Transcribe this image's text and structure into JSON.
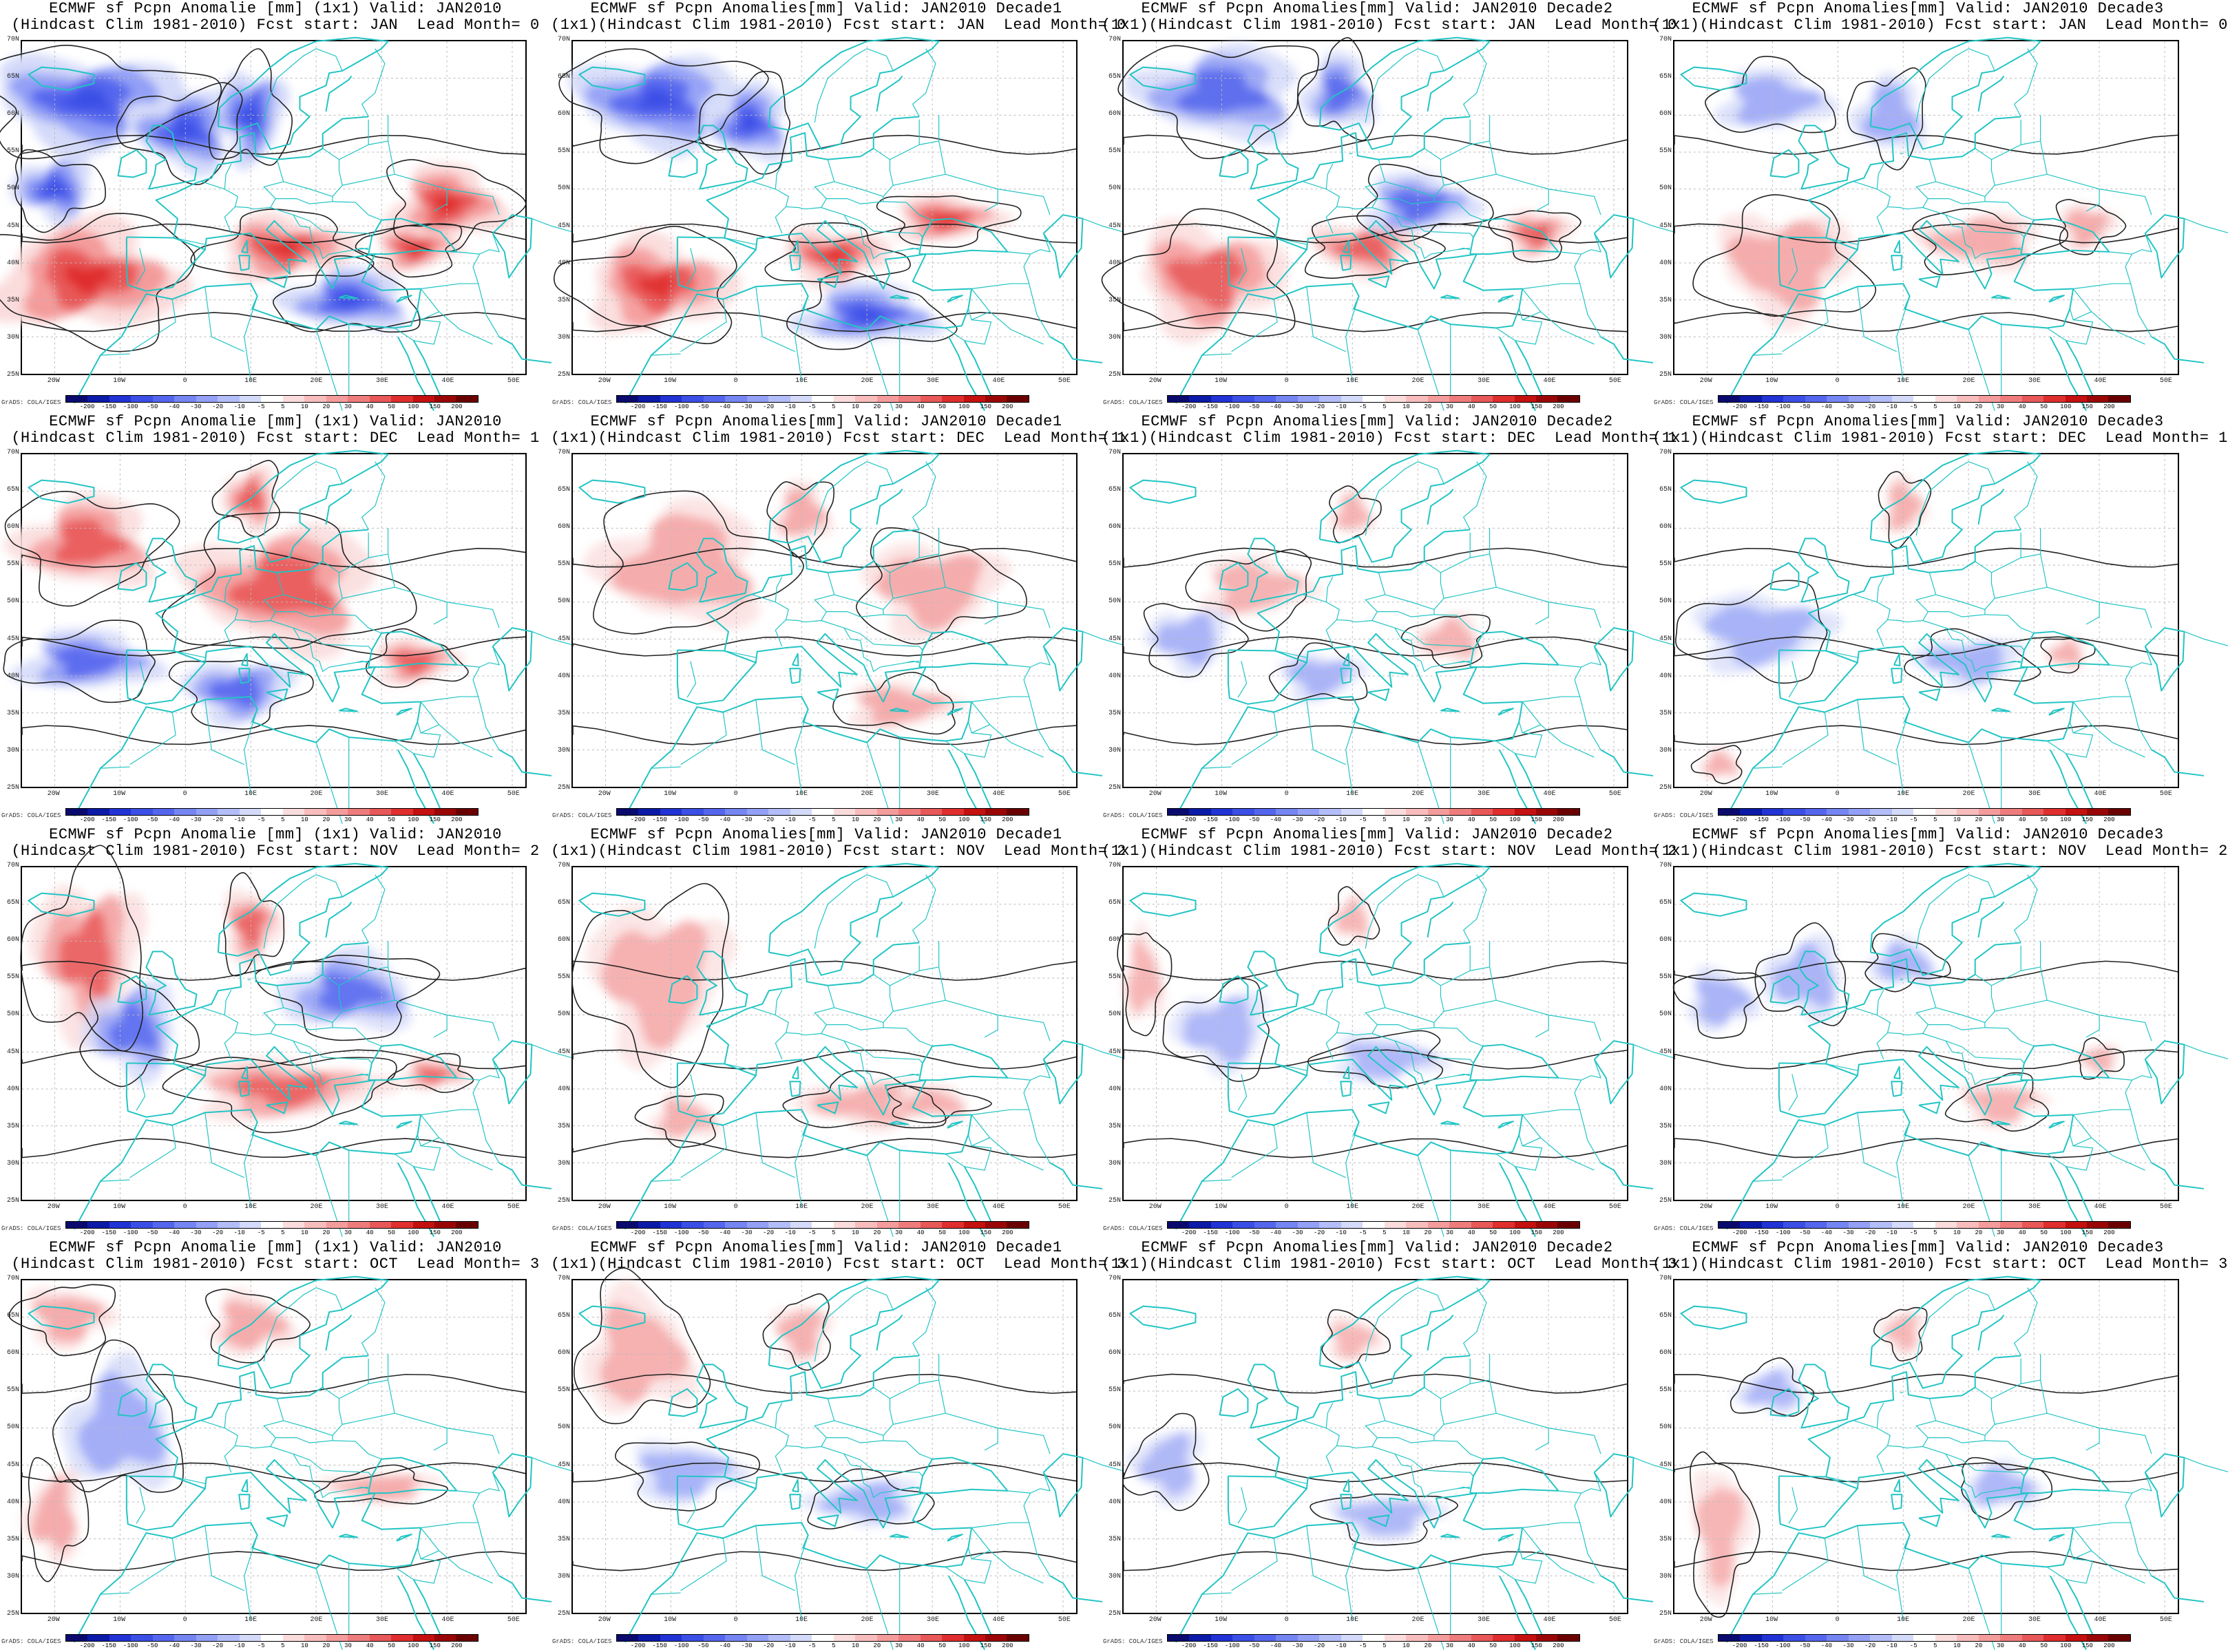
{
  "panels": [
    {
      "title1": "ECMWF sf Pcpn Anomalie [mm] (1x1) Valid: JAN2010",
      "title2": "(Hindcast Clim 1981-2010) Fcst start: JAN  Lead Month= 0",
      "intensity": 1.0
    },
    {
      "title1": "ECMWF sf Pcpn Anomalies[mm] Valid: JAN2010 Decade1",
      "title2": "(1x1)(Hindcast Clim 1981-2010) Fcst start: JAN  Lead Month= 0",
      "intensity": 0.85
    },
    {
      "title1": "ECMWF sf Pcpn Anomalies[mm] Valid: JAN2010 Decade2",
      "title2": "(1x1)(Hindcast Clim 1981-2010) Fcst start: JAN  Lead Month= 0",
      "intensity": 0.7
    },
    {
      "title1": "ECMWF sf Pcpn Anomalies[mm] Valid: JAN2010 Decade3",
      "title2": "(1x1)(Hindcast Clim 1981-2010) Fcst start: JAN  Lead Month= 0",
      "intensity": 0.5
    },
    {
      "title1": "ECMWF sf Pcpn Anomalie [mm] (1x1) Valid: JAN2010",
      "title2": "(Hindcast Clim 1981-2010) Fcst start: DEC  Lead Month= 1",
      "intensity": 0.75
    },
    {
      "title1": "ECMWF sf Pcpn Anomalies[mm] Valid: JAN2010 Decade1",
      "title2": "(1x1)(Hindcast Clim 1981-2010) Fcst start: DEC  Lead Month= 1",
      "intensity": 0.5
    },
    {
      "title1": "ECMWF sf Pcpn Anomalies[mm] Valid: JAN2010 Decade2",
      "title2": "(1x1)(Hindcast Clim 1981-2010) Fcst start: DEC  Lead Month= 1",
      "intensity": 0.3
    },
    {
      "title1": "ECMWF sf Pcpn Anomalies[mm] Valid: JAN2010 Decade3",
      "title2": "(1x1)(Hindcast Clim 1981-2010) Fcst start: DEC  Lead Month= 1",
      "intensity": 0.35
    },
    {
      "title1": "ECMWF sf Pcpn Anomalie [mm] (1x1) Valid: JAN2010",
      "title2": "(Hindcast Clim 1981-2010) Fcst start: NOV  Lead Month= 2",
      "intensity": 0.55
    },
    {
      "title1": "ECMWF sf Pcpn Anomalies[mm] Valid: JAN2010 Decade1",
      "title2": "(1x1)(Hindcast Clim 1981-2010) Fcst start: NOV  Lead Month= 2",
      "intensity": 0.35
    },
    {
      "title1": "ECMWF sf Pcpn Anomalies[mm] Valid: JAN2010 Decade2",
      "title2": "(1x1)(Hindcast Clim 1981-2010) Fcst start: NOV  Lead Month= 2",
      "intensity": 0.25
    },
    {
      "title1": "ECMWF sf Pcpn Anomalies[mm] Valid: JAN2010 Decade3",
      "title2": "(1x1)(Hindcast Clim 1981-2010) Fcst start: NOV  Lead Month= 2",
      "intensity": 0.3
    },
    {
      "title1": "ECMWF sf Pcpn Anomalie [mm] (1x1) Valid: JAN2010",
      "title2": "(Hindcast Clim 1981-2010) Fcst start: OCT  Lead Month= 3",
      "intensity": 0.5
    },
    {
      "title1": "ECMWF sf Pcpn Anomalies[mm] Valid: JAN2010 Decade1",
      "title2": "(1x1)(Hindcast Clim 1981-2010) Fcst start: OCT  Lead Month= 3",
      "intensity": 0.35
    },
    {
      "title1": "ECMWF sf Pcpn Anomalies[mm] Valid: JAN2010 Decade2",
      "title2": "(1x1)(Hindcast Clim 1981-2010) Fcst start: OCT  Lead Month= 3",
      "intensity": 0.2
    },
    {
      "title1": "ECMWF sf Pcpn Anomalies[mm] Valid: JAN2010 Decade3",
      "title2": "(1x1)(Hindcast Clim 1981-2010) Fcst start: OCT  Lead Month= 3",
      "intensity": 0.25
    }
  ],
  "lat_labels": [
    "70N",
    "65N",
    "60N",
    "55N",
    "50N",
    "45N",
    "40N",
    "35N",
    "30N",
    "25N"
  ],
  "lon_labels": [
    "20W",
    "10W",
    "0",
    "10E",
    "20E",
    "30E",
    "40E",
    "50E"
  ],
  "colorbar": {
    "levels": [
      "-200",
      "-150",
      "-100",
      "-50",
      "-40",
      "-30",
      "-20",
      "-10",
      "-5",
      "5",
      "10",
      "20",
      "30",
      "40",
      "50",
      "100",
      "150",
      "200"
    ],
    "colors": [
      "#0a0a6e",
      "#0c1aa8",
      "#2233d6",
      "#3b4fe6",
      "#5566ee",
      "#7585f2",
      "#93a0f6",
      "#b3bdf9",
      "#d4daf9",
      "#ffffff",
      "#fbdcdc",
      "#f8bcbc",
      "#f49c9c",
      "#ef7c7c",
      "#e85858",
      "#e02e2e",
      "#c51010",
      "#9a0606",
      "#6b0000"
    ],
    "credit": "GrADS: COLA/IGES"
  },
  "colors": {
    "coast": "#22c4c4",
    "contour": "#222222",
    "grid": "#bbbbbb"
  }
}
